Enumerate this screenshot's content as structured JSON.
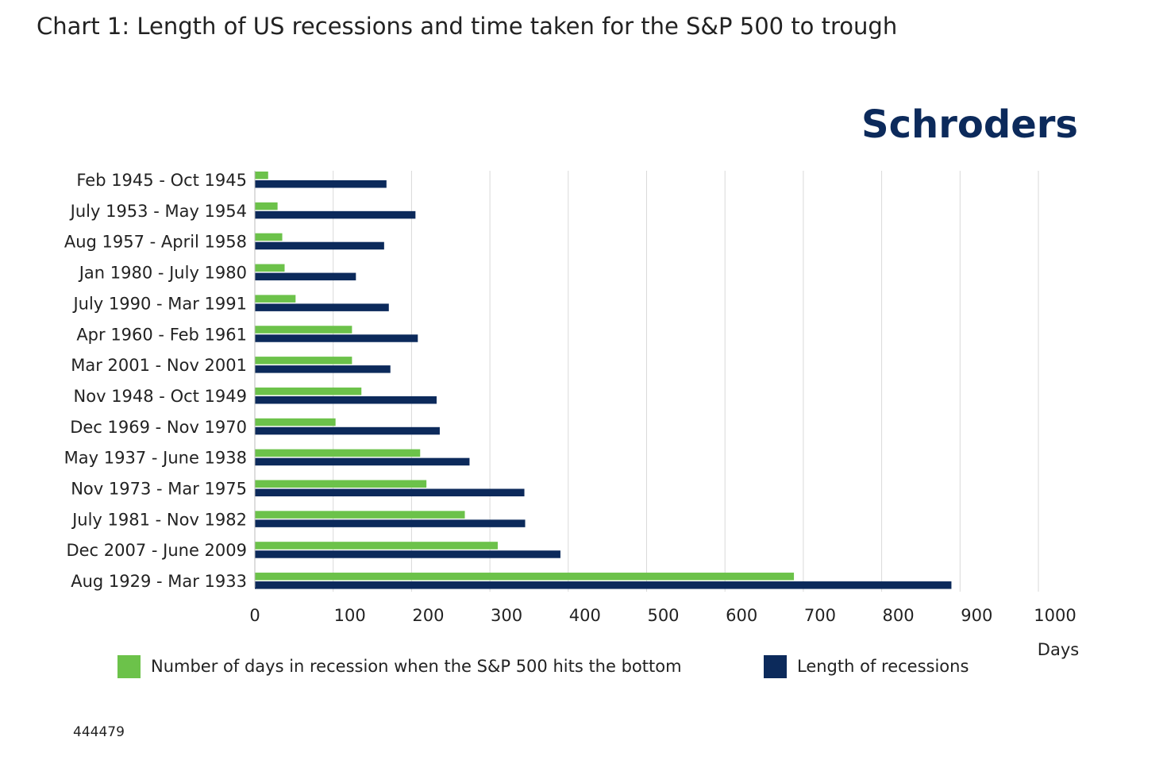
{
  "chart_data": {
    "type": "bar",
    "orientation": "horizontal",
    "title": "Chart 1: Length of US recessions and time taken for the S&P 500 to trough",
    "brand": "Schroders",
    "footnote": "444479",
    "xlabel": "Days",
    "categories": [
      "Feb 1945 - Oct 1945",
      "July 1953 - May 1954",
      "Aug 1957 - April 1958",
      "Jan 1980 - July 1980",
      "July 1990 - Mar 1991",
      "Apr 1960 - Feb 1961",
      "Mar 2001 - Nov 2001",
      "Nov 1948 - Oct 1949",
      "Dec 1969 - Nov 1970",
      "May 1937 - June 1938",
      "Nov 1973 - Mar 1975",
      "July 1981 - Nov 1982",
      "Dec 2007 - June 2009",
      "Aug 1929 - Mar 1933"
    ],
    "series": [
      {
        "name": "Number of days in recession when the S&P 500 hits the bottom",
        "color": "#6cc24a",
        "values": [
          17,
          29,
          35,
          38,
          52,
          124,
          124,
          136,
          103,
          211,
          219,
          268,
          310,
          688
        ]
      },
      {
        "name": "Length of recessions",
        "color": "#0c2a5b",
        "values": [
          168,
          205,
          165,
          129,
          171,
          208,
          173,
          232,
          236,
          274,
          344,
          345,
          390,
          889
        ]
      }
    ],
    "xlim": [
      0,
      1000
    ],
    "xticks": [
      0,
      100,
      200,
      300,
      400,
      500,
      600,
      700,
      800,
      900,
      1000
    ],
    "grid": true
  }
}
